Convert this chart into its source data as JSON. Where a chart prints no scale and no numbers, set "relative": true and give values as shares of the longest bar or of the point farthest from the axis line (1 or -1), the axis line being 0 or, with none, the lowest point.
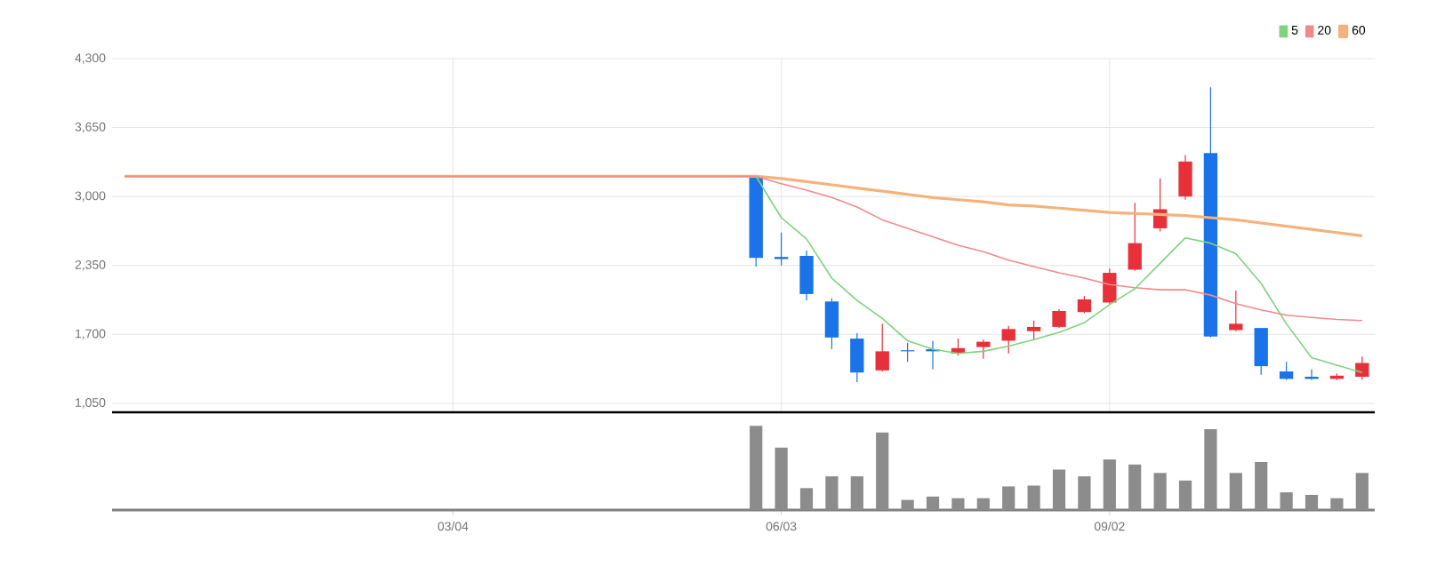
{
  "chart_data": [
    {
      "type": "candlestick",
      "categories": [
        null,
        null,
        null,
        null,
        null,
        null,
        null,
        null,
        null,
        null,
        null,
        null,
        null,
        null,
        null,
        null,
        null,
        null,
        null,
        null,
        null,
        null,
        null,
        null,
        null,
        null,
        null,
        null,
        null,
        null,
        null,
        null,
        null,
        null,
        null,
        null,
        null,
        null,
        null,
        null,
        null,
        null,
        null,
        null,
        null,
        null,
        null,
        null,
        null,
        null
      ],
      "ohlc": [
        null,
        null,
        null,
        null,
        null,
        null,
        null,
        null,
        null,
        null,
        null,
        null,
        null,
        null,
        null,
        null,
        null,
        null,
        null,
        null,
        null,
        null,
        null,
        null,
        null,
        [
          3190,
          3190,
          2340,
          2420
        ],
        [
          2430,
          2660,
          2350,
          2410
        ],
        [
          2440,
          2490,
          2020,
          2080
        ],
        [
          2010,
          2040,
          1560,
          1670
        ],
        [
          1660,
          1710,
          1250,
          1340
        ],
        [
          1360,
          1800,
          1350,
          1540
        ],
        [
          1550,
          1620,
          1440,
          1540
        ],
        [
          1560,
          1640,
          1370,
          1540
        ],
        [
          1520,
          1660,
          1500,
          1570
        ],
        [
          1580,
          1650,
          1470,
          1630
        ],
        [
          1640,
          1780,
          1520,
          1750
        ],
        [
          1730,
          1830,
          1650,
          1770
        ],
        [
          1770,
          1940,
          1760,
          1920
        ],
        [
          1910,
          2060,
          1900,
          2030
        ],
        [
          2000,
          2320,
          1990,
          2280
        ],
        [
          2310,
          2940,
          2300,
          2560
        ],
        [
          2700,
          3170,
          2670,
          2880
        ],
        [
          3000,
          3390,
          2970,
          3330
        ],
        [
          3410,
          4030,
          1670,
          1680
        ],
        [
          1740,
          2110,
          1730,
          1800
        ],
        [
          1760,
          1760,
          1320,
          1400
        ],
        [
          1350,
          1440,
          1270,
          1280
        ],
        [
          1300,
          1370,
          1270,
          1280
        ],
        [
          1280,
          1330,
          1270,
          1310
        ],
        [
          1300,
          1490,
          1270,
          1430
        ]
      ],
      "colors": [
        null,
        null,
        null,
        null,
        null,
        null,
        null,
        null,
        null,
        null,
        null,
        null,
        null,
        null,
        null,
        null,
        null,
        null,
        null,
        null,
        null,
        null,
        null,
        null,
        null,
        "#1a73e8",
        "#1a73e8",
        "#1a73e8",
        "#1a73e8",
        "#1a73e8",
        "#e8303a",
        "#1a73e8",
        "#1a73e8",
        "#e8303a",
        "#e8303a",
        "#e8303a",
        "#e8303a",
        "#e8303a",
        "#e8303a",
        "#e8303a",
        "#e8303a",
        "#e8303a",
        "#e8303a",
        "#1a73e8",
        "#e8303a",
        "#1a73e8",
        "#1a73e8",
        "#1a73e8",
        "#e8303a",
        "#e8303a"
      ],
      "series": [
        {
          "name": "5",
          "type": "line",
          "color": "#7ed37e",
          "values": [
            null,
            null,
            null,
            null,
            null,
            null,
            null,
            null,
            null,
            null,
            null,
            null,
            null,
            null,
            null,
            null,
            null,
            null,
            null,
            null,
            null,
            null,
            null,
            null,
            null,
            3190,
            2800,
            2600,
            2230,
            2020,
            1850,
            1640,
            1560,
            1520,
            1540,
            1590,
            1650,
            1720,
            1810,
            1980,
            2130,
            2370,
            2610,
            2560,
            2460,
            2180,
            1800,
            1480,
            1410,
            1340
          ]
        },
        {
          "name": "20",
          "type": "line",
          "color": "#f08a8a",
          "values": [
            3190,
            3190,
            3190,
            3190,
            3190,
            3190,
            3190,
            3190,
            3190,
            3190,
            3190,
            3190,
            3190,
            3190,
            3190,
            3190,
            3190,
            3190,
            3190,
            3190,
            3190,
            3190,
            3190,
            3190,
            3190,
            3190,
            3120,
            3060,
            2990,
            2900,
            2780,
            2700,
            2620,
            2540,
            2480,
            2400,
            2340,
            2280,
            2230,
            2170,
            2140,
            2120,
            2120,
            2070,
            1990,
            1930,
            1880,
            1860,
            1840,
            1830
          ]
        },
        {
          "name": "60",
          "type": "line",
          "color": "#f5b27a",
          "values": [
            3190,
            3190,
            3190,
            3190,
            3190,
            3190,
            3190,
            3190,
            3190,
            3190,
            3190,
            3190,
            3190,
            3190,
            3190,
            3190,
            3190,
            3190,
            3190,
            3190,
            3190,
            3190,
            3190,
            3190,
            3190,
            3190,
            3170,
            3140,
            3110,
            3080,
            3050,
            3020,
            2990,
            2970,
            2950,
            2920,
            2910,
            2890,
            2870,
            2850,
            2840,
            2830,
            2820,
            2800,
            2780,
            2750,
            2720,
            2690,
            2660,
            2630
          ]
        }
      ],
      "ylim": [
        965,
        4300
      ],
      "yticks": [
        {
          "value": 1050,
          "label": "1,050"
        },
        {
          "value": 1700,
          "label": "1,700"
        },
        {
          "value": 2350,
          "label": "2,350"
        },
        {
          "value": 3000,
          "label": "3,000"
        },
        {
          "value": 3650,
          "label": "3,650"
        },
        {
          "value": 4300,
          "label": "4,300"
        }
      ],
      "grid": true,
      "legend": "top right",
      "tick_labels": "y"
    },
    {
      "type": "bar",
      "relative": true,
      "color": "#8c8c8c",
      "categories": [
        null,
        null,
        null,
        null,
        null,
        null,
        null,
        null,
        null,
        null,
        null,
        null,
        null,
        "03/04",
        null,
        null,
        null,
        null,
        null,
        null,
        null,
        null,
        null,
        null,
        null,
        null,
        "06/03",
        null,
        null,
        null,
        null,
        null,
        null,
        null,
        null,
        null,
        null,
        null,
        null,
        "09/02",
        null,
        null,
        null,
        null,
        null,
        null,
        null,
        null,
        null,
        null
      ],
      "values": [
        null,
        null,
        null,
        null,
        null,
        null,
        null,
        null,
        null,
        null,
        null,
        null,
        null,
        null,
        null,
        null,
        null,
        null,
        null,
        null,
        null,
        null,
        null,
        null,
        null,
        1,
        0.74,
        0.26,
        0.4,
        0.4,
        0.92,
        0.12,
        0.16,
        0.14,
        0.14,
        0.28,
        0.29,
        0.48,
        0.4,
        0.6,
        0.54,
        0.44,
        0.35,
        0.96,
        0.44,
        0.57,
        0.21,
        0.18,
        0.14,
        0.44
      ],
      "tick_labels": "x"
    }
  ]
}
